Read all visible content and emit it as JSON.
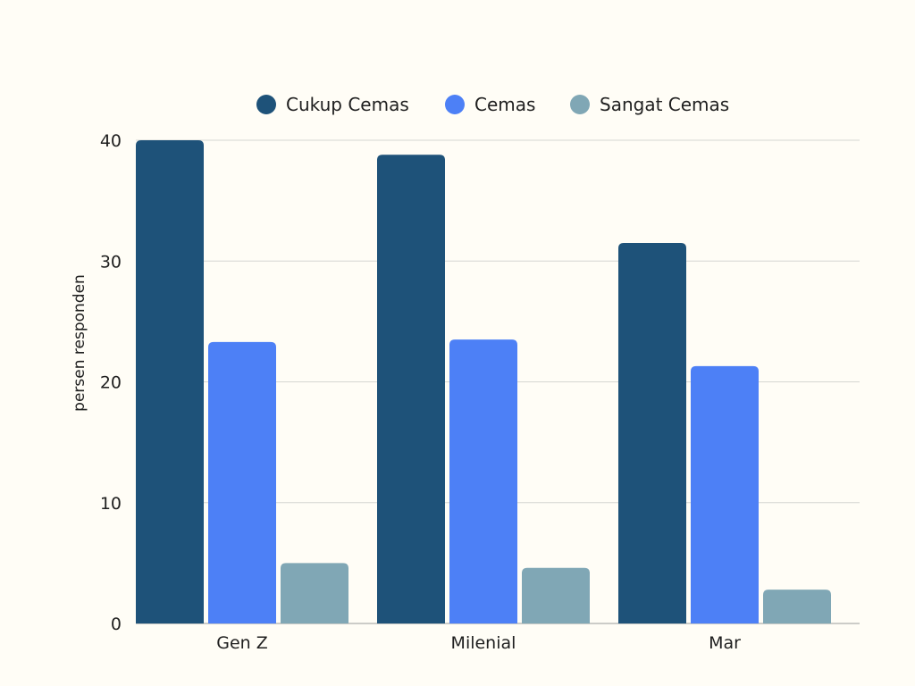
{
  "chart_data": {
    "type": "bar",
    "categories": [
      "Gen Z",
      "Milenial",
      "Mar"
    ],
    "series": [
      {
        "name": "Cukup Cemas",
        "color": "#1E5279",
        "values": [
          40,
          38.8,
          31.5
        ]
      },
      {
        "name": "Cemas",
        "color": "#4D80F6",
        "values": [
          23.3,
          23.5,
          21.3
        ]
      },
      {
        "name": "Sangat Cemas",
        "color": "#80A7B5",
        "values": [
          5,
          4.6,
          2.8
        ]
      }
    ],
    "ylabel": "persen responden",
    "xlabel": "",
    "ylim": [
      0,
      40
    ],
    "yticks": [
      0,
      10,
      20,
      30,
      40
    ],
    "grid": true,
    "legend_position": "top-center"
  }
}
